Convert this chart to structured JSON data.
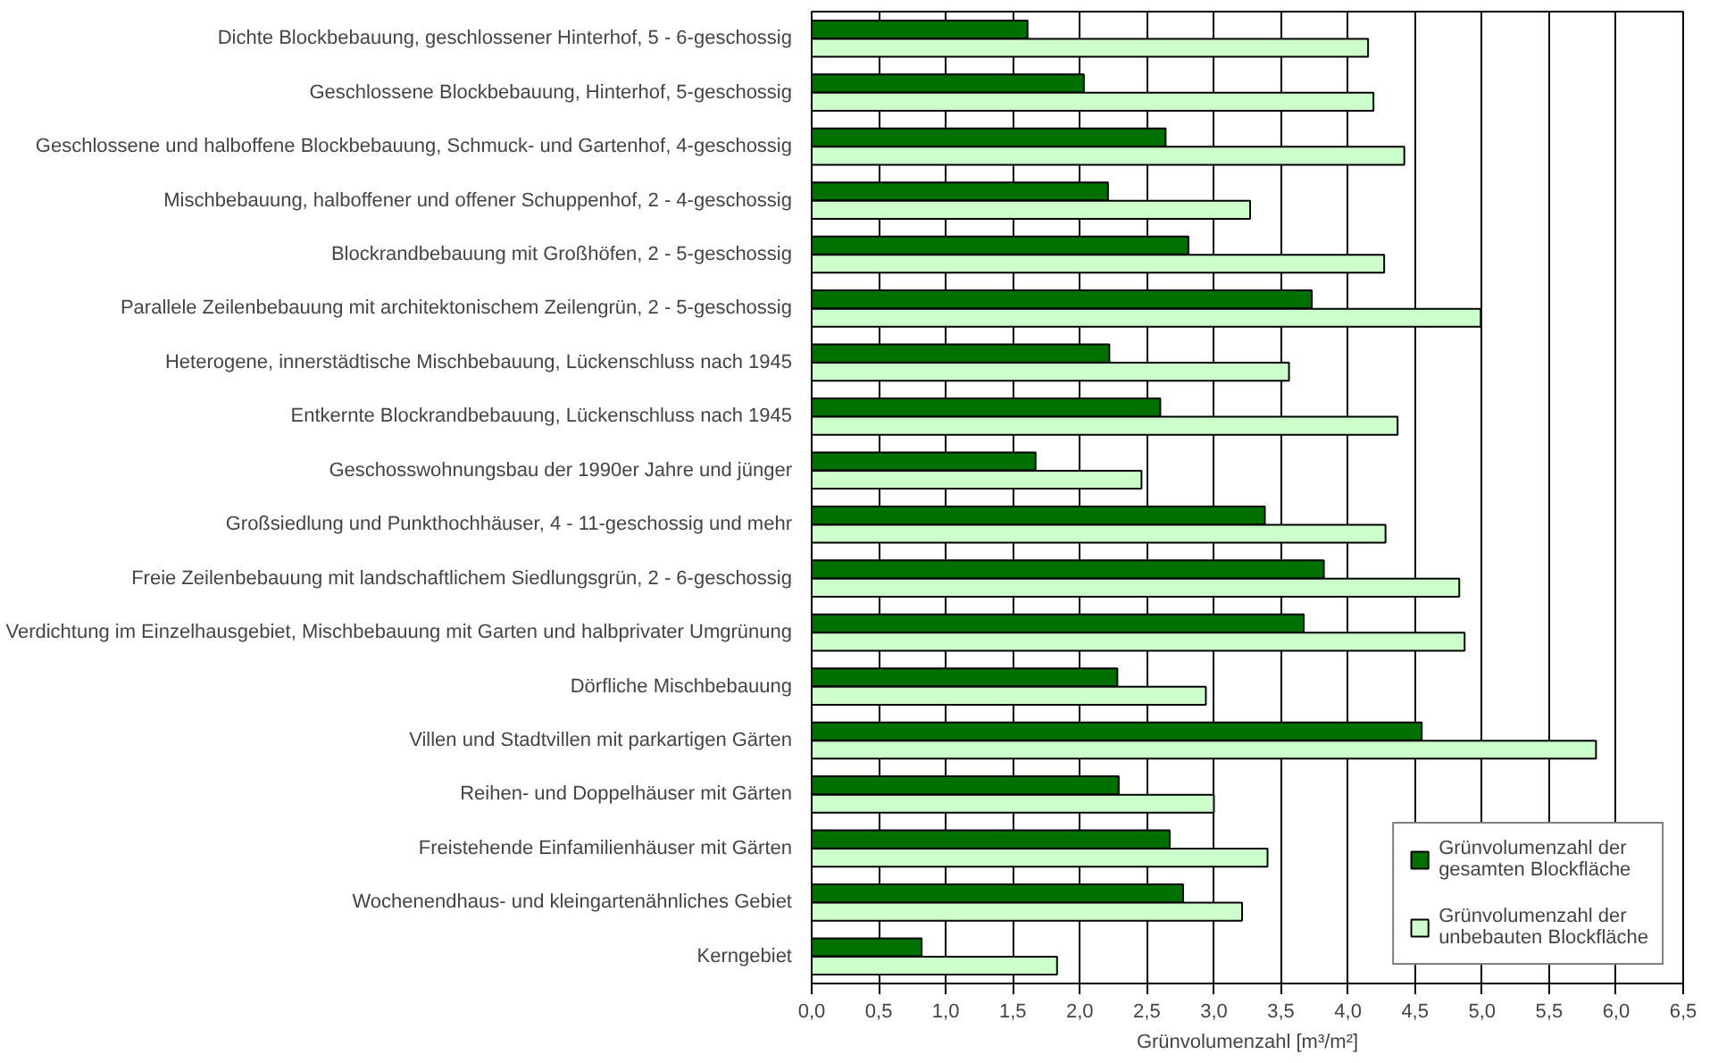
{
  "chart_data": {
    "type": "bar",
    "orientation": "horizontal",
    "xlabel": "Grünvolumenzahl [m³/m²]",
    "categories": [
      "Dichte Blockbebauung, geschlossener Hinterhof, 5 - 6-geschossig",
      "Geschlossene Blockbebauung, Hinterhof, 5-geschossig",
      "Geschlossene und halboffene Blockbebauung, Schmuck- und Gartenhof, 4-geschossig",
      "Mischbebauung, halboffener und offener Schuppenhof, 2 - 4-geschossig",
      "Blockrandbebauung mit Großhöfen, 2 - 5-geschossig",
      "Parallele Zeilenbebauung mit architektonischem Zeilengrün, 2 - 5-geschossig",
      "Heterogene, innerstädtische Mischbebauung, Lückenschluss nach 1945",
      "Entkernte Blockrandbebauung, Lückenschluss nach 1945",
      "Geschosswohnungsbau der 1990er Jahre und jünger",
      "Großsiedlung und Punkthochhäuser, 4 - 11-geschossig und mehr",
      "Freie Zeilenbebauung mit landschaftlichem Siedlungsgrün, 2 - 6-geschossig",
      "Verdichtung im Einzelhausgebiet, Mischbebauung mit Garten und halbprivater Umgrünung",
      "Dörfliche Mischbebauung",
      "Villen und Stadtvillen mit parkartigen Gärten",
      "Reihen- und Doppelhäuser mit Gärten",
      "Freistehende Einfamilienhäuser mit Gärten",
      "Wochenendhaus- und kleingartenähnliches Gebiet",
      "Kerngebiet"
    ],
    "series": [
      {
        "name": "Grünvolumenzahl der gesamten Blockfläche",
        "color": "#007000",
        "values": [
          1.61,
          2.03,
          2.64,
          2.21,
          2.81,
          3.73,
          2.22,
          2.6,
          1.67,
          3.38,
          3.82,
          3.67,
          2.28,
          4.55,
          2.29,
          2.67,
          2.77,
          0.82
        ]
      },
      {
        "name": "Grünvolumenzahl der unbebauten Blockfläche",
        "color": "#ccffcc",
        "values": [
          4.15,
          4.19,
          4.42,
          3.27,
          4.27,
          4.99,
          3.56,
          4.37,
          2.46,
          4.28,
          4.83,
          4.87,
          2.94,
          5.85,
          3.0,
          3.4,
          3.21,
          1.83
        ]
      }
    ],
    "xlim": [
      0,
      6.5
    ],
    "xticks": [
      {
        "value": 0,
        "label": "0,0"
      },
      {
        "value": 0.5,
        "label": "0,5"
      },
      {
        "value": 1,
        "label": "1,0"
      },
      {
        "value": 1.5,
        "label": "1,5"
      },
      {
        "value": 2,
        "label": "2,0"
      },
      {
        "value": 2.5,
        "label": "2,5"
      },
      {
        "value": 3,
        "label": "3,0"
      },
      {
        "value": 3.5,
        "label": "3,5"
      },
      {
        "value": 4,
        "label": "4,0"
      },
      {
        "value": 4.5,
        "label": "4,5"
      },
      {
        "value": 5,
        "label": "5,0"
      },
      {
        "value": 5.5,
        "label": "5,5"
      },
      {
        "value": 6,
        "label": "6,0"
      },
      {
        "value": 6.5,
        "label": "6,5"
      }
    ],
    "grid": "x",
    "legend": "bottom right"
  }
}
